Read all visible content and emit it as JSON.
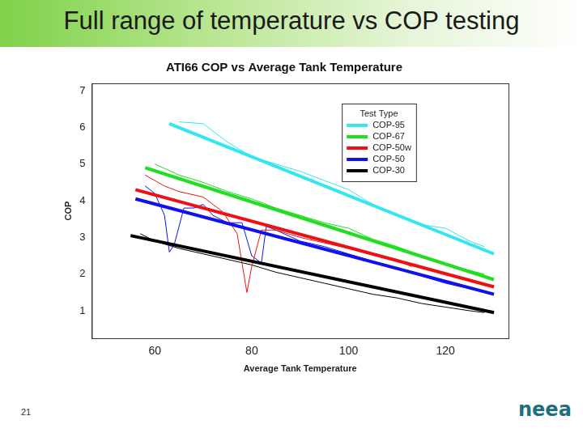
{
  "slide": {
    "title": "Full range of temperature vs COP testing",
    "page_number": "21",
    "logo": "neea"
  },
  "chart_data": {
    "type": "line",
    "title": "ATI66 COP vs Average Tank Temperature",
    "x_label": "Average Tank Temperature",
    "y_label": "COP",
    "legend_title": "Test Type",
    "legend": "top-right",
    "grid": false,
    "xlim": [
      47,
      133
    ],
    "xticks": [
      60,
      80,
      100,
      120
    ],
    "ylim": [
      0.25,
      7.2
    ],
    "yticks": [
      1,
      2,
      3,
      4,
      5,
      6,
      7
    ],
    "series": [
      {
        "name": "COP-95",
        "color": "#33e6f0",
        "x": [
          65,
          70,
          75,
          80,
          85,
          90,
          95,
          100,
          105,
          110,
          115,
          120,
          125,
          128
        ],
        "values": [
          6.15,
          6.1,
          5.6,
          5.2,
          5.0,
          4.8,
          4.55,
          4.3,
          3.9,
          3.6,
          3.35,
          3.25,
          2.9,
          2.75
        ],
        "fit": {
          "x": [
            63,
            130
          ],
          "values": [
            6.1,
            2.55
          ]
        }
      },
      {
        "name": "COP-67",
        "color": "#22dd22",
        "x": [
          60,
          65,
          70,
          75,
          80,
          85,
          90,
          95,
          100,
          105,
          110,
          115,
          120,
          125,
          128
        ],
        "values": [
          5.0,
          4.7,
          4.5,
          4.25,
          4.05,
          3.8,
          3.6,
          3.4,
          3.25,
          2.95,
          2.75,
          2.5,
          2.25,
          2.1,
          2.0
        ],
        "fit": {
          "x": [
            58,
            130
          ],
          "values": [
            4.9,
            1.85
          ]
        }
      },
      {
        "name": "COP-50w",
        "color": "#ee1111",
        "x": [
          58,
          62,
          65,
          70,
          74,
          77,
          78,
          79,
          80,
          82,
          85,
          90,
          95,
          100,
          105,
          110,
          113
        ],
        "values": [
          4.7,
          4.4,
          4.25,
          4.1,
          3.7,
          3.1,
          2.3,
          1.5,
          2.2,
          3.2,
          3.2,
          3.0,
          2.85,
          2.7,
          2.55,
          2.4,
          2.2
        ],
        "fit": {
          "x": [
            56,
            130
          ],
          "values": [
            4.3,
            1.65
          ]
        }
      },
      {
        "name": "COP-50",
        "color": "#1111ee",
        "x": [
          58,
          60,
          62,
          63,
          64,
          66,
          68,
          70,
          72,
          75,
          78,
          80,
          82,
          83,
          85,
          90,
          95,
          100,
          105,
          110,
          115,
          120,
          125,
          128
        ],
        "values": [
          4.4,
          4.2,
          3.6,
          2.6,
          2.8,
          3.8,
          3.8,
          3.9,
          3.6,
          3.4,
          3.4,
          2.5,
          2.3,
          3.3,
          3.2,
          2.9,
          2.75,
          2.55,
          2.35,
          2.15,
          1.95,
          1.75,
          1.6,
          1.5
        ],
        "fit": {
          "x": [
            56,
            130
          ],
          "values": [
            4.05,
            1.45
          ]
        }
      },
      {
        "name": "COP-30",
        "color": "#000000",
        "x": [
          57,
          60,
          65,
          70,
          75,
          80,
          85,
          90,
          95,
          100,
          105,
          110,
          115,
          120,
          125,
          128
        ],
        "values": [
          3.1,
          2.9,
          2.7,
          2.55,
          2.4,
          2.25,
          2.05,
          1.9,
          1.75,
          1.6,
          1.45,
          1.35,
          1.2,
          1.1,
          1.0,
          0.95
        ],
        "fit": {
          "x": [
            55,
            130
          ],
          "values": [
            3.05,
            0.95
          ]
        }
      }
    ]
  }
}
